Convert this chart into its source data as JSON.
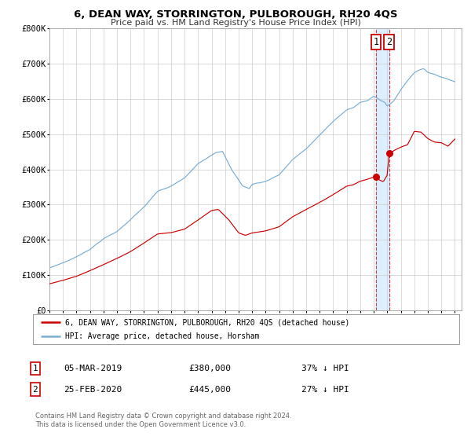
{
  "title": "6, DEAN WAY, STORRINGTON, PULBOROUGH, RH20 4QS",
  "subtitle": "Price paid vs. HM Land Registry's House Price Index (HPI)",
  "legend_line1": "6, DEAN WAY, STORRINGTON, PULBOROUGH, RH20 4QS (detached house)",
  "legend_line2": "HPI: Average price, detached house, Horsham",
  "sale1_date": "05-MAR-2019",
  "sale1_price": 380000,
  "sale1_hpi_diff": "37% ↓ HPI",
  "sale1_label": "1",
  "sale2_date": "25-FEB-2020",
  "sale2_price": 445000,
  "sale2_hpi_diff": "27% ↓ HPI",
  "sale2_label": "2",
  "footer": "Contains HM Land Registry data © Crown copyright and database right 2024.\nThis data is licensed under the Open Government Licence v3.0.",
  "red_color": "#cc0000",
  "blue_color": "#7aadd4",
  "highlight_color": "#ddeeff",
  "grid_color": "#cccccc",
  "background_color": "#ffffff",
  "xlim_start": 1995.0,
  "xlim_end": 2025.5,
  "ylim_min": 0,
  "ylim_max": 800000,
  "sale1_year": 2019.17,
  "sale2_year": 2020.13
}
